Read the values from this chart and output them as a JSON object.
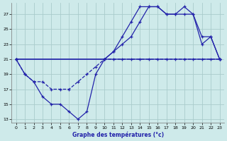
{
  "title": "Graphe des températures (°c)",
  "bg_color": "#ceeaea",
  "grid_color": "#aacccc",
  "line_color": "#2222aa",
  "xlim": [
    -0.5,
    23.5
  ],
  "ylim": [
    12.5,
    28.5
  ],
  "yticks": [
    13,
    15,
    17,
    19,
    21,
    23,
    25,
    27
  ],
  "xticks": [
    0,
    1,
    2,
    3,
    4,
    5,
    6,
    7,
    8,
    9,
    10,
    11,
    12,
    13,
    14,
    15,
    16,
    17,
    18,
    19,
    20,
    21,
    22,
    23
  ],
  "s_min_x": [
    0,
    1,
    2,
    3,
    4,
    5,
    6,
    7,
    8,
    9,
    10,
    11,
    12,
    13,
    14,
    15,
    16,
    17,
    18,
    19,
    20,
    21,
    22,
    23
  ],
  "s_min_y": [
    21,
    19,
    18,
    18,
    17,
    17,
    17,
    18,
    19,
    20,
    21,
    21,
    21,
    21,
    21,
    21,
    21,
    21,
    21,
    21,
    21,
    21,
    21,
    21
  ],
  "s_max_x": [
    0,
    10,
    11,
    12,
    13,
    14,
    15,
    16,
    17,
    18,
    19,
    20,
    21,
    22,
    23
  ],
  "s_max_y": [
    21,
    21,
    22,
    24,
    26,
    28,
    28,
    28,
    27,
    27,
    27,
    27,
    23,
    24,
    21
  ],
  "s_mean_x": [
    0,
    10,
    11,
    12,
    13,
    14,
    15,
    16,
    17,
    18,
    19,
    20,
    21,
    22,
    23
  ],
  "s_mean_y": [
    21,
    21,
    22,
    23,
    24,
    26,
    28,
    28,
    27,
    27,
    28,
    27,
    24,
    24,
    21
  ],
  "s_v_x": [
    0,
    1,
    2,
    3,
    4,
    5,
    6,
    7,
    8,
    9,
    10,
    23
  ],
  "s_v_y": [
    21,
    19,
    18,
    16,
    15,
    15,
    14,
    13,
    14,
    19,
    21,
    21
  ]
}
